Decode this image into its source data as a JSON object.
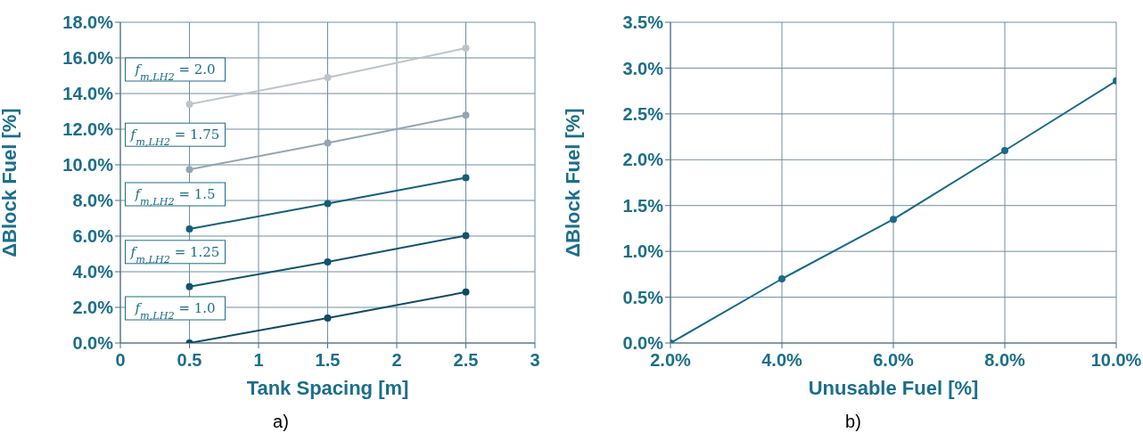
{
  "chart_data": [
    {
      "type": "line",
      "xlabel": "Tank Spacing [m]",
      "ylabel": "ΔBlock Fuel [%]",
      "annotations": [
        "a)"
      ],
      "grid": true,
      "marker": "circle",
      "xlim": [
        0,
        3
      ],
      "xticks": [
        0,
        0.5,
        1,
        1.5,
        2,
        2.5,
        3
      ],
      "ylim": [
        0,
        18
      ],
      "yticks": [
        {
          "value": 0,
          "label": "0.0%"
        },
        {
          "value": 2,
          "label": "2.0%"
        },
        {
          "value": 4,
          "label": "4.0%"
        },
        {
          "value": 6,
          "label": "6.0%"
        },
        {
          "value": 8,
          "label": "8.0%"
        },
        {
          "value": 10,
          "label": "10.0%"
        },
        {
          "value": 12,
          "label": "12.0%"
        },
        {
          "value": 14,
          "label": "14.0%"
        },
        {
          "value": 16,
          "label": "16.0%"
        },
        {
          "value": 18,
          "label": "18.0%"
        }
      ],
      "x": [
        0.5,
        1.5,
        2.5
      ],
      "series": [
        {
          "name": "f$_{m,LH2}$ = 1.0",
          "color": "#0d4a63",
          "values": [
            0,
            1.4,
            2.86
          ]
        },
        {
          "name": "f$_{m,LH2}$ = 1.25",
          "color": "#0f5470",
          "values": [
            3.16,
            4.55,
            6.03
          ]
        },
        {
          "name": "f$_{m,LH2}$ = 1.5",
          "color": "#135f7c",
          "values": [
            6.4,
            7.82,
            9.28
          ]
        },
        {
          "name": "f$_{m,LH2}$ = 1.75",
          "color": "#93a5b2",
          "values": [
            9.74,
            11.23,
            12.79
          ]
        },
        {
          "name": "f$_{m,LH2}$ = 2.0",
          "color": "#bcc4ca",
          "values": [
            13.4,
            14.9,
            16.55
          ]
        }
      ]
    },
    {
      "type": "line",
      "xlabel": "Unusable Fuel [%]",
      "ylabel": "ΔBlock Fuel [%]",
      "annotations": [
        "b)"
      ],
      "grid": true,
      "marker": "circle",
      "xlim": [
        2,
        10
      ],
      "xticks": [
        {
          "value": 2,
          "label": "2.0%"
        },
        {
          "value": 4,
          "label": "4.0%"
        },
        {
          "value": 6,
          "label": "6.0%"
        },
        {
          "value": 8,
          "label": "8.0%"
        },
        {
          "value": 10,
          "label": "10.0%"
        }
      ],
      "ylim": [
        0,
        3.5
      ],
      "yticks": [
        {
          "value": 0,
          "label": "0.0%"
        },
        {
          "value": 0.5,
          "label": "0.5%"
        },
        {
          "value": 1,
          "label": "1.0%"
        },
        {
          "value": 1.5,
          "label": "1.5%"
        },
        {
          "value": 2,
          "label": "2.0%"
        },
        {
          "value": 2.5,
          "label": "2.5%"
        },
        {
          "value": 3,
          "label": "3.0%"
        },
        {
          "value": 3.5,
          "label": "3.5%"
        }
      ],
      "x": [
        2,
        4,
        6,
        8,
        10
      ],
      "series": [
        {
          "color": "#1a6a88",
          "values": [
            0,
            0.7,
            1.35,
            2.1,
            2.86
          ]
        }
      ]
    }
  ]
}
